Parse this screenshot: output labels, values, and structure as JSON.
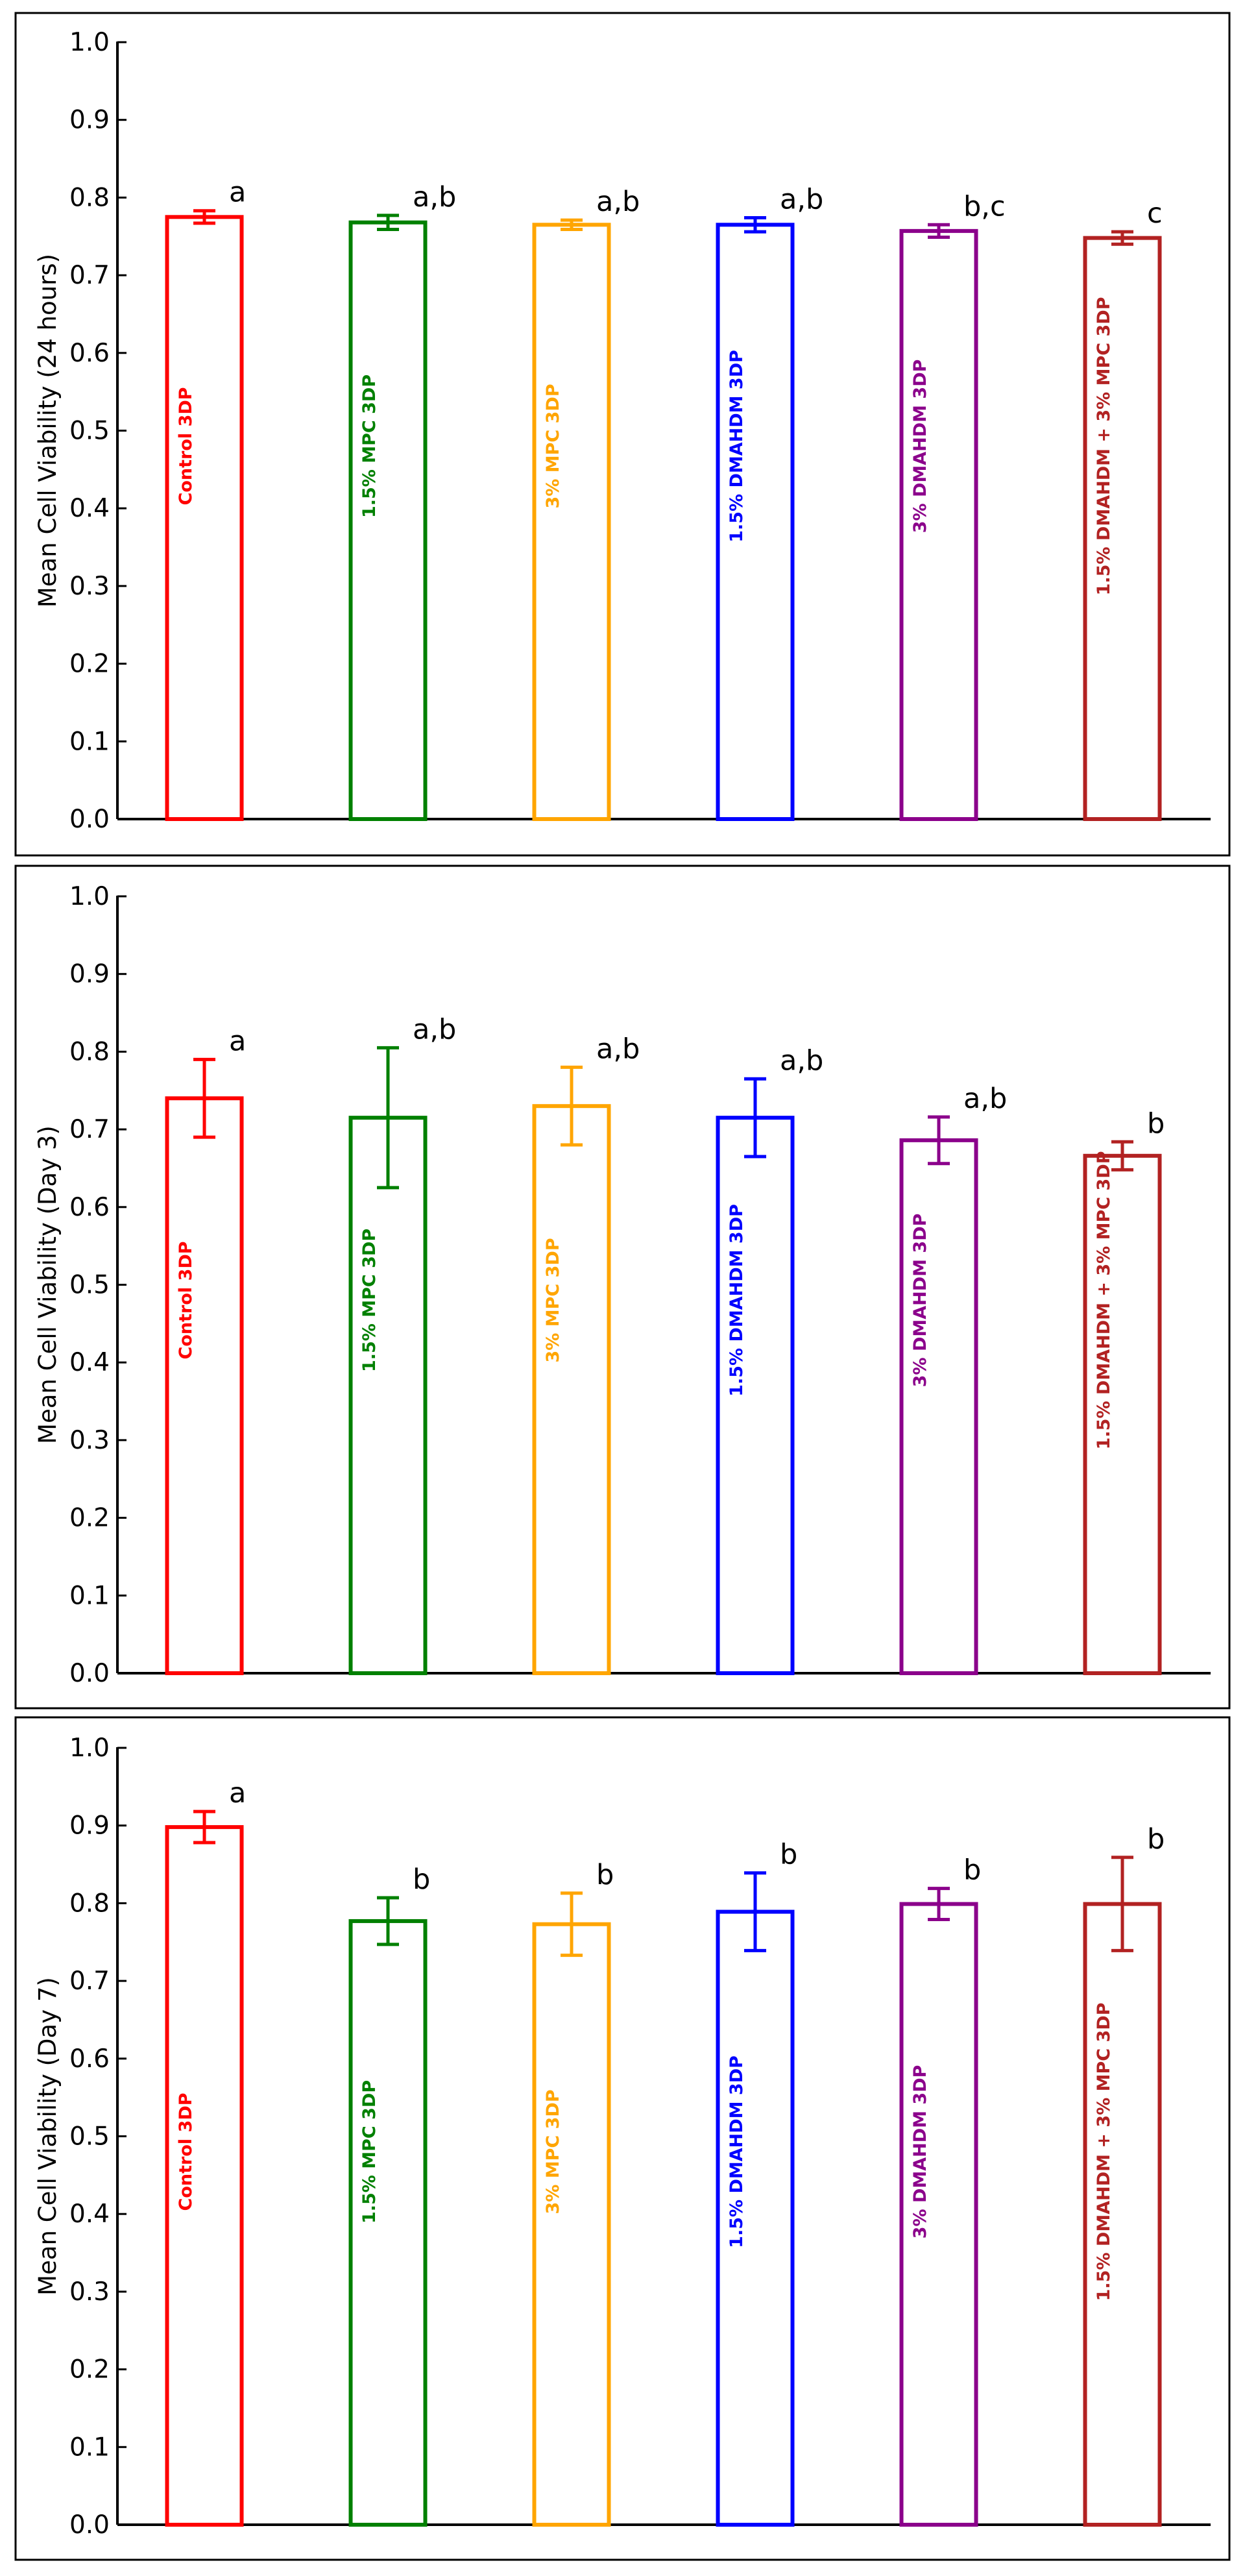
{
  "chart_data": [
    {
      "type": "bar",
      "ylabel": "Mean Cell Viability (24 hours)",
      "ylim": [
        0,
        1.0
      ],
      "yticks": [
        "0.0",
        "0.1",
        "0.2",
        "0.3",
        "0.4",
        "0.5",
        "0.6",
        "0.7",
        "0.8",
        "0.9",
        "1.0"
      ],
      "categories": [
        "Control 3DP",
        "1.5% MPC 3DP",
        "3% MPC 3DP",
        "1.5% DMAHDM 3DP",
        "3% DMAHDM 3DP",
        "1.5% DMAHDM + 3% MPC 3DP"
      ],
      "values": [
        0.775,
        0.768,
        0.765,
        0.765,
        0.757,
        0.748
      ],
      "errors": [
        0.008,
        0.009,
        0.006,
        0.009,
        0.008,
        0.008
      ],
      "significance": [
        "a",
        "a,b",
        "a,b",
        "a,b",
        "b,c",
        "c"
      ],
      "colors": [
        "#ff0000",
        "#008000",
        "#ffa500",
        "#0000ff",
        "#8b008b",
        "#b22222"
      ]
    },
    {
      "type": "bar",
      "ylabel": "Mean Cell Viability (Day 3)",
      "ylim": [
        0,
        1.0
      ],
      "yticks": [
        "0.0",
        "0.1",
        "0.2",
        "0.3",
        "0.4",
        "0.5",
        "0.6",
        "0.7",
        "0.8",
        "0.9",
        "1.0"
      ],
      "categories": [
        "Control 3DP",
        "1.5% MPC 3DP",
        "3% MPC 3DP",
        "1.5% DMAHDM 3DP",
        "3% DMAHDM 3DP",
        "1.5% DMAHDM + 3% MPC 3DP"
      ],
      "values": [
        0.74,
        0.715,
        0.73,
        0.715,
        0.686,
        0.666
      ],
      "errors": [
        0.05,
        0.09,
        0.05,
        0.05,
        0.03,
        0.018
      ],
      "significance": [
        "a",
        "a,b",
        "a,b",
        "a,b",
        "a,b",
        "b"
      ],
      "colors": [
        "#ff0000",
        "#008000",
        "#ffa500",
        "#0000ff",
        "#8b008b",
        "#b22222"
      ]
    },
    {
      "type": "bar",
      "ylabel": "Mean Cell Viability (Day 7)",
      "ylim": [
        0,
        1.0
      ],
      "yticks": [
        "0.0",
        "0.1",
        "0.2",
        "0.3",
        "0.4",
        "0.5",
        "0.6",
        "0.7",
        "0.8",
        "0.9",
        "1.0"
      ],
      "categories": [
        "Control 3DP",
        "1.5% MPC 3DP",
        "3% MPC 3DP",
        "1.5% DMAHDM 3DP",
        "3% DMAHDM 3DP",
        "1.5% DMAHDM + 3% MPC 3DP"
      ],
      "values": [
        0.898,
        0.777,
        0.773,
        0.789,
        0.799,
        0.799
      ],
      "errors": [
        0.02,
        0.03,
        0.04,
        0.05,
        0.02,
        0.06
      ],
      "significance": [
        "a",
        "b",
        "b",
        "b",
        "b",
        "b"
      ],
      "colors": [
        "#ff0000",
        "#008000",
        "#ffa500",
        "#0000ff",
        "#8b008b",
        "#b22222"
      ]
    }
  ]
}
